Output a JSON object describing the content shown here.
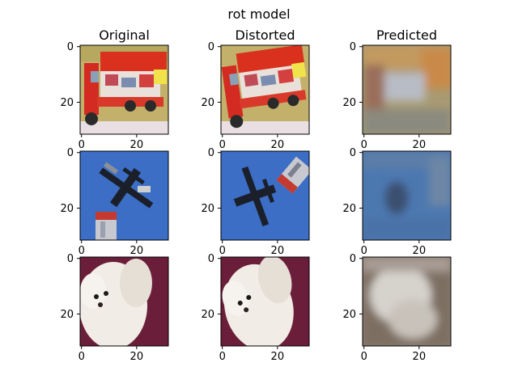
{
  "chart_data": {
    "type": "image_grid",
    "title": "rot model",
    "columns": [
      "Original",
      "Distorted",
      "Predicted"
    ],
    "rows": 3,
    "image_size": 32,
    "xticks": [
      0,
      20
    ],
    "yticks": [
      0,
      20
    ],
    "panels": [
      [
        {
          "content": "red toy truck on yellow-green background",
          "base": "#c9b46a",
          "blur": 0
        },
        {
          "content": "red toy truck on yellow-green background, rotated",
          "base": "#c9b46a",
          "blur": 0
        },
        {
          "content": "blurry reconstruction of truck",
          "base": "#a3946e",
          "blur": 2.2
        }
      ],
      [
        {
          "content": "airplane against blue sky",
          "base": "#3d6fc3",
          "blur": 0
        },
        {
          "content": "airplane against blue sky, rotated",
          "base": "#3d6fc3",
          "blur": 0
        },
        {
          "content": "blurry reconstruction of airplane",
          "base": "#4f79b0",
          "blur": 2.2
        }
      ],
      [
        {
          "content": "white fluffy puppy on maroon background",
          "base": "#6b1f3a",
          "blur": 0
        },
        {
          "content": "white fluffy puppy on maroon background, rotated",
          "base": "#6b1f3a",
          "blur": 0
        },
        {
          "content": "blurry reconstruction of puppy",
          "base": "#8a7d70",
          "blur": 2.2
        }
      ]
    ]
  }
}
